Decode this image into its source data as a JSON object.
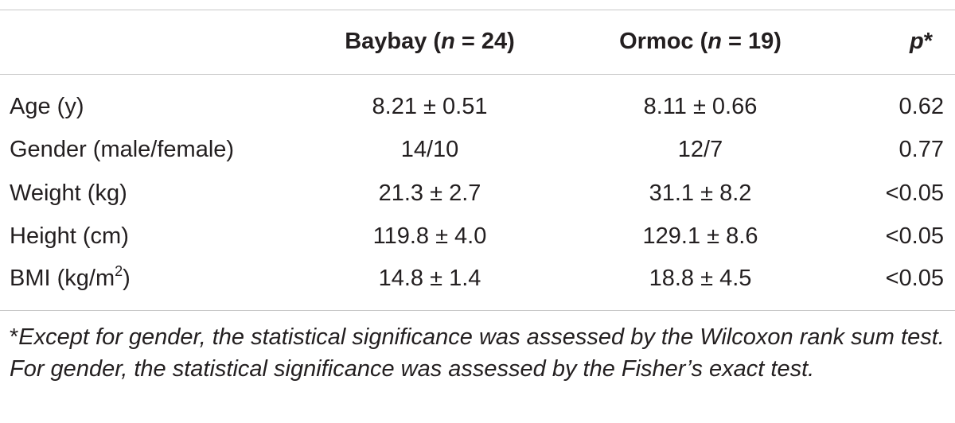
{
  "table": {
    "header": [
      [
        "Baybay (",
        "n",
        " = 24)"
      ],
      [
        "Ormoc (",
        "n",
        " = 19)"
      ],
      [
        "p",
        "*"
      ]
    ],
    "rows": [
      [
        "Age (y)",
        "8.21 ± 0.51",
        "8.11 ± 0.66",
        "0.62"
      ],
      [
        "Gender (male/female)",
        "14/10",
        "12/7",
        "0.77"
      ],
      [
        "Weight (kg)",
        "21.3 ± 2.7",
        "31.1 ± 8.2",
        "<0.05"
      ],
      [
        "Height (cm)",
        "119.8 ± 4.0",
        "129.1 ± 8.6",
        "<0.05"
      ],
      [
        [
          "BMI (kg/m",
          "2",
          ")"
        ],
        "14.8 ± 1.4",
        "18.8 ± 4.5",
        "<0.05"
      ]
    ],
    "footnote": [
      "*",
      "Except for gender, the statistical significance was assessed by the Wilcoxon rank sum test. For gender, the statistical significance was assessed by the Fisher’s exact test."
    ]
  }
}
